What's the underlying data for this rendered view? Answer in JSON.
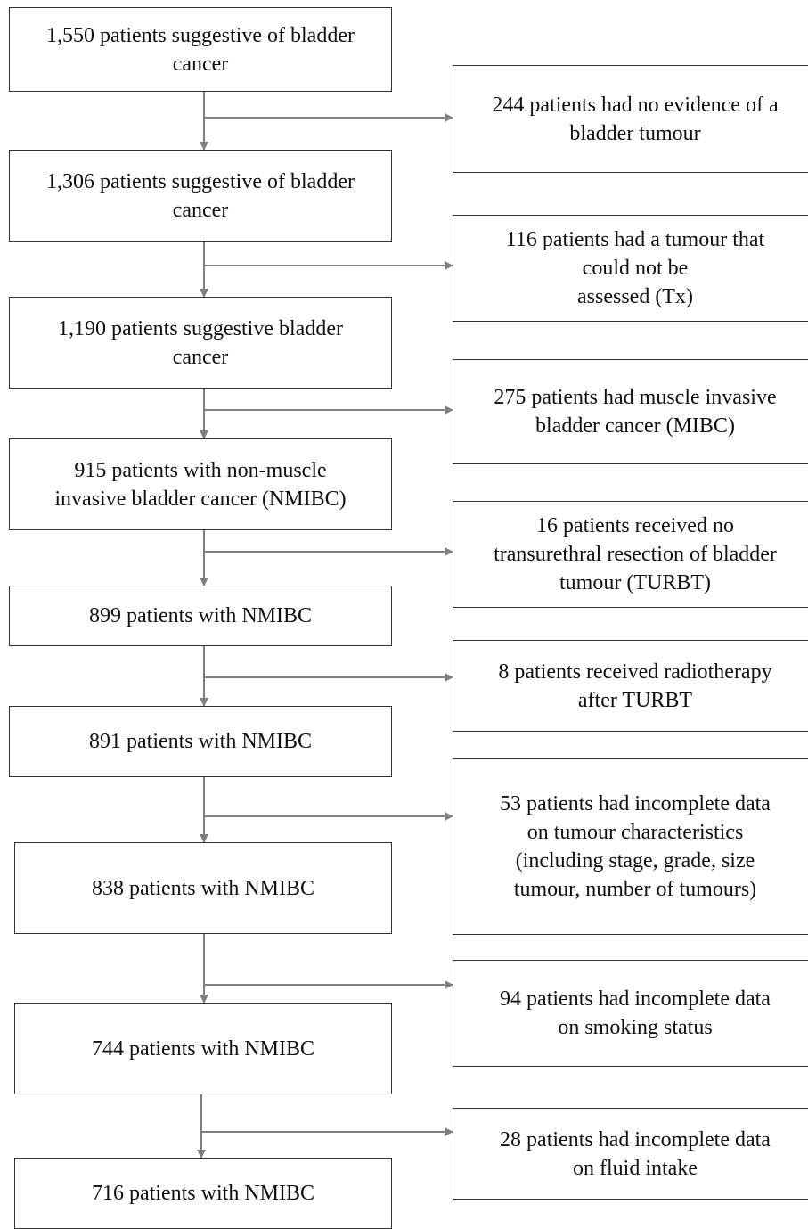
{
  "main_boxes": [
    {
      "text": "1,550 patients suggestive of bladder\ncancer"
    },
    {
      "text": "1,306 patients suggestive of bladder\ncancer"
    },
    {
      "text": "1,190 patients suggestive bladder\ncancer"
    },
    {
      "text": "915 patients with non-muscle\ninvasive bladder cancer (NMIBC)"
    },
    {
      "text": "899 patients with NMIBC"
    },
    {
      "text": "891 patients with NMIBC"
    },
    {
      "text": "838 patients with NMIBC"
    },
    {
      "text": "744 patients with NMIBC"
    },
    {
      "text": "716 patients with NMIBC"
    }
  ],
  "exclusion_boxes": [
    {
      "text": "244 patients had no evidence of a\nbladder tumour"
    },
    {
      "text": "116 patients had a tumour that\ncould not be\nassessed (Tx)"
    },
    {
      "text": "275 patients had muscle invasive\nbladder cancer (MIBC)"
    },
    {
      "text": "16 patients received no\ntransurethral resection of bladder\ntumour (TURBT)"
    },
    {
      "text": "8 patients received radiotherapy\nafter TURBT"
    },
    {
      "text": "53 patients had incomplete data\non tumour characteristics\n(including stage, grade, size\ntumour, number of tumours)"
    },
    {
      "text": "94 patients had incomplete data\non smoking status"
    },
    {
      "text": "28 patients had incomplete data\non fluid intake"
    }
  ],
  "colors": {
    "connector": "#7f7f7f",
    "box_border": "#333333"
  }
}
